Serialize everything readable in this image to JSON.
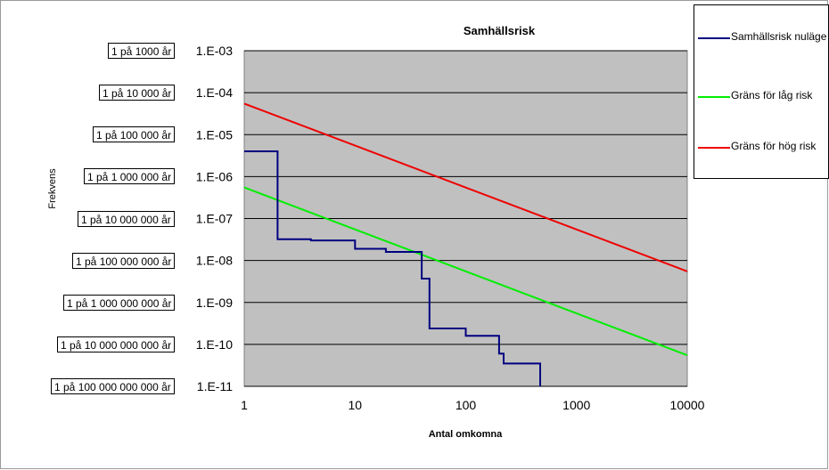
{
  "chart_data": {
    "type": "line",
    "title": "Samhällsrisk",
    "xlabel": "Antal omkomna",
    "ylabel": "Frekvens",
    "x_scale": "log",
    "y_scale": "log",
    "xlim": [
      1,
      10000
    ],
    "ylim": [
      1e-11,
      0.001
    ],
    "plot_background": "#c0c0c0",
    "grid": "horizontal",
    "legend_position": "right",
    "x_tick_labels": [
      "1",
      "10",
      "100",
      "1000",
      "10000"
    ],
    "x_ticks": [
      1,
      10,
      100,
      1000,
      10000
    ],
    "y_tick_labels": [
      "1.E-03",
      "1.E-04",
      "1.E-05",
      "1.E-06",
      "1.E-07",
      "1.E-08",
      "1.E-09",
      "1.E-10",
      "1.E-11"
    ],
    "y_ticks": [
      0.001,
      0.0001,
      1e-05,
      1e-06,
      1e-07,
      1e-08,
      1e-09,
      1e-10,
      1e-11
    ],
    "frequency_labels": [
      "1 på 1000 år",
      "1 på 10 000 år",
      "1 på 100 000 år",
      "1 på 1 000 000 år",
      "1 på 10 000 000 år",
      "1 på 100 000 000 år",
      "1 på 1 000 000 000 år",
      "1 på 10 000 000 000 år",
      "1 på 100 000 000 000 år"
    ],
    "series": [
      {
        "name": "Samhällsrisk nuläge",
        "color": "#000080",
        "style": "step",
        "points": [
          [
            1,
            4e-06
          ],
          [
            2,
            4e-06
          ],
          [
            2,
            3.2e-08
          ],
          [
            4,
            3.2e-08
          ],
          [
            4,
            3e-08
          ],
          [
            10,
            3e-08
          ],
          [
            10,
            1.9e-08
          ],
          [
            19,
            1.9e-08
          ],
          [
            19,
            1.6e-08
          ],
          [
            40,
            1.6e-08
          ],
          [
            40,
            3.7e-09
          ],
          [
            47,
            3.7e-09
          ],
          [
            47,
            2.4e-10
          ],
          [
            100,
            2.4e-10
          ],
          [
            100,
            1.6e-10
          ],
          [
            200,
            1.6e-10
          ],
          [
            200,
            6e-11
          ],
          [
            220,
            6e-11
          ],
          [
            220,
            3.5e-11
          ],
          [
            470,
            3.5e-11
          ],
          [
            470,
            1e-11
          ]
        ]
      },
      {
        "name": "Gräns för låg risk",
        "color": "#00ee00",
        "points": [
          [
            1,
            5.5e-07
          ],
          [
            10000,
            5.5e-11
          ]
        ]
      },
      {
        "name": "Gräns för hög risk",
        "color": "#ee0000",
        "points": [
          [
            1,
            5.5e-05
          ],
          [
            10000,
            5.5e-09
          ]
        ]
      }
    ]
  }
}
